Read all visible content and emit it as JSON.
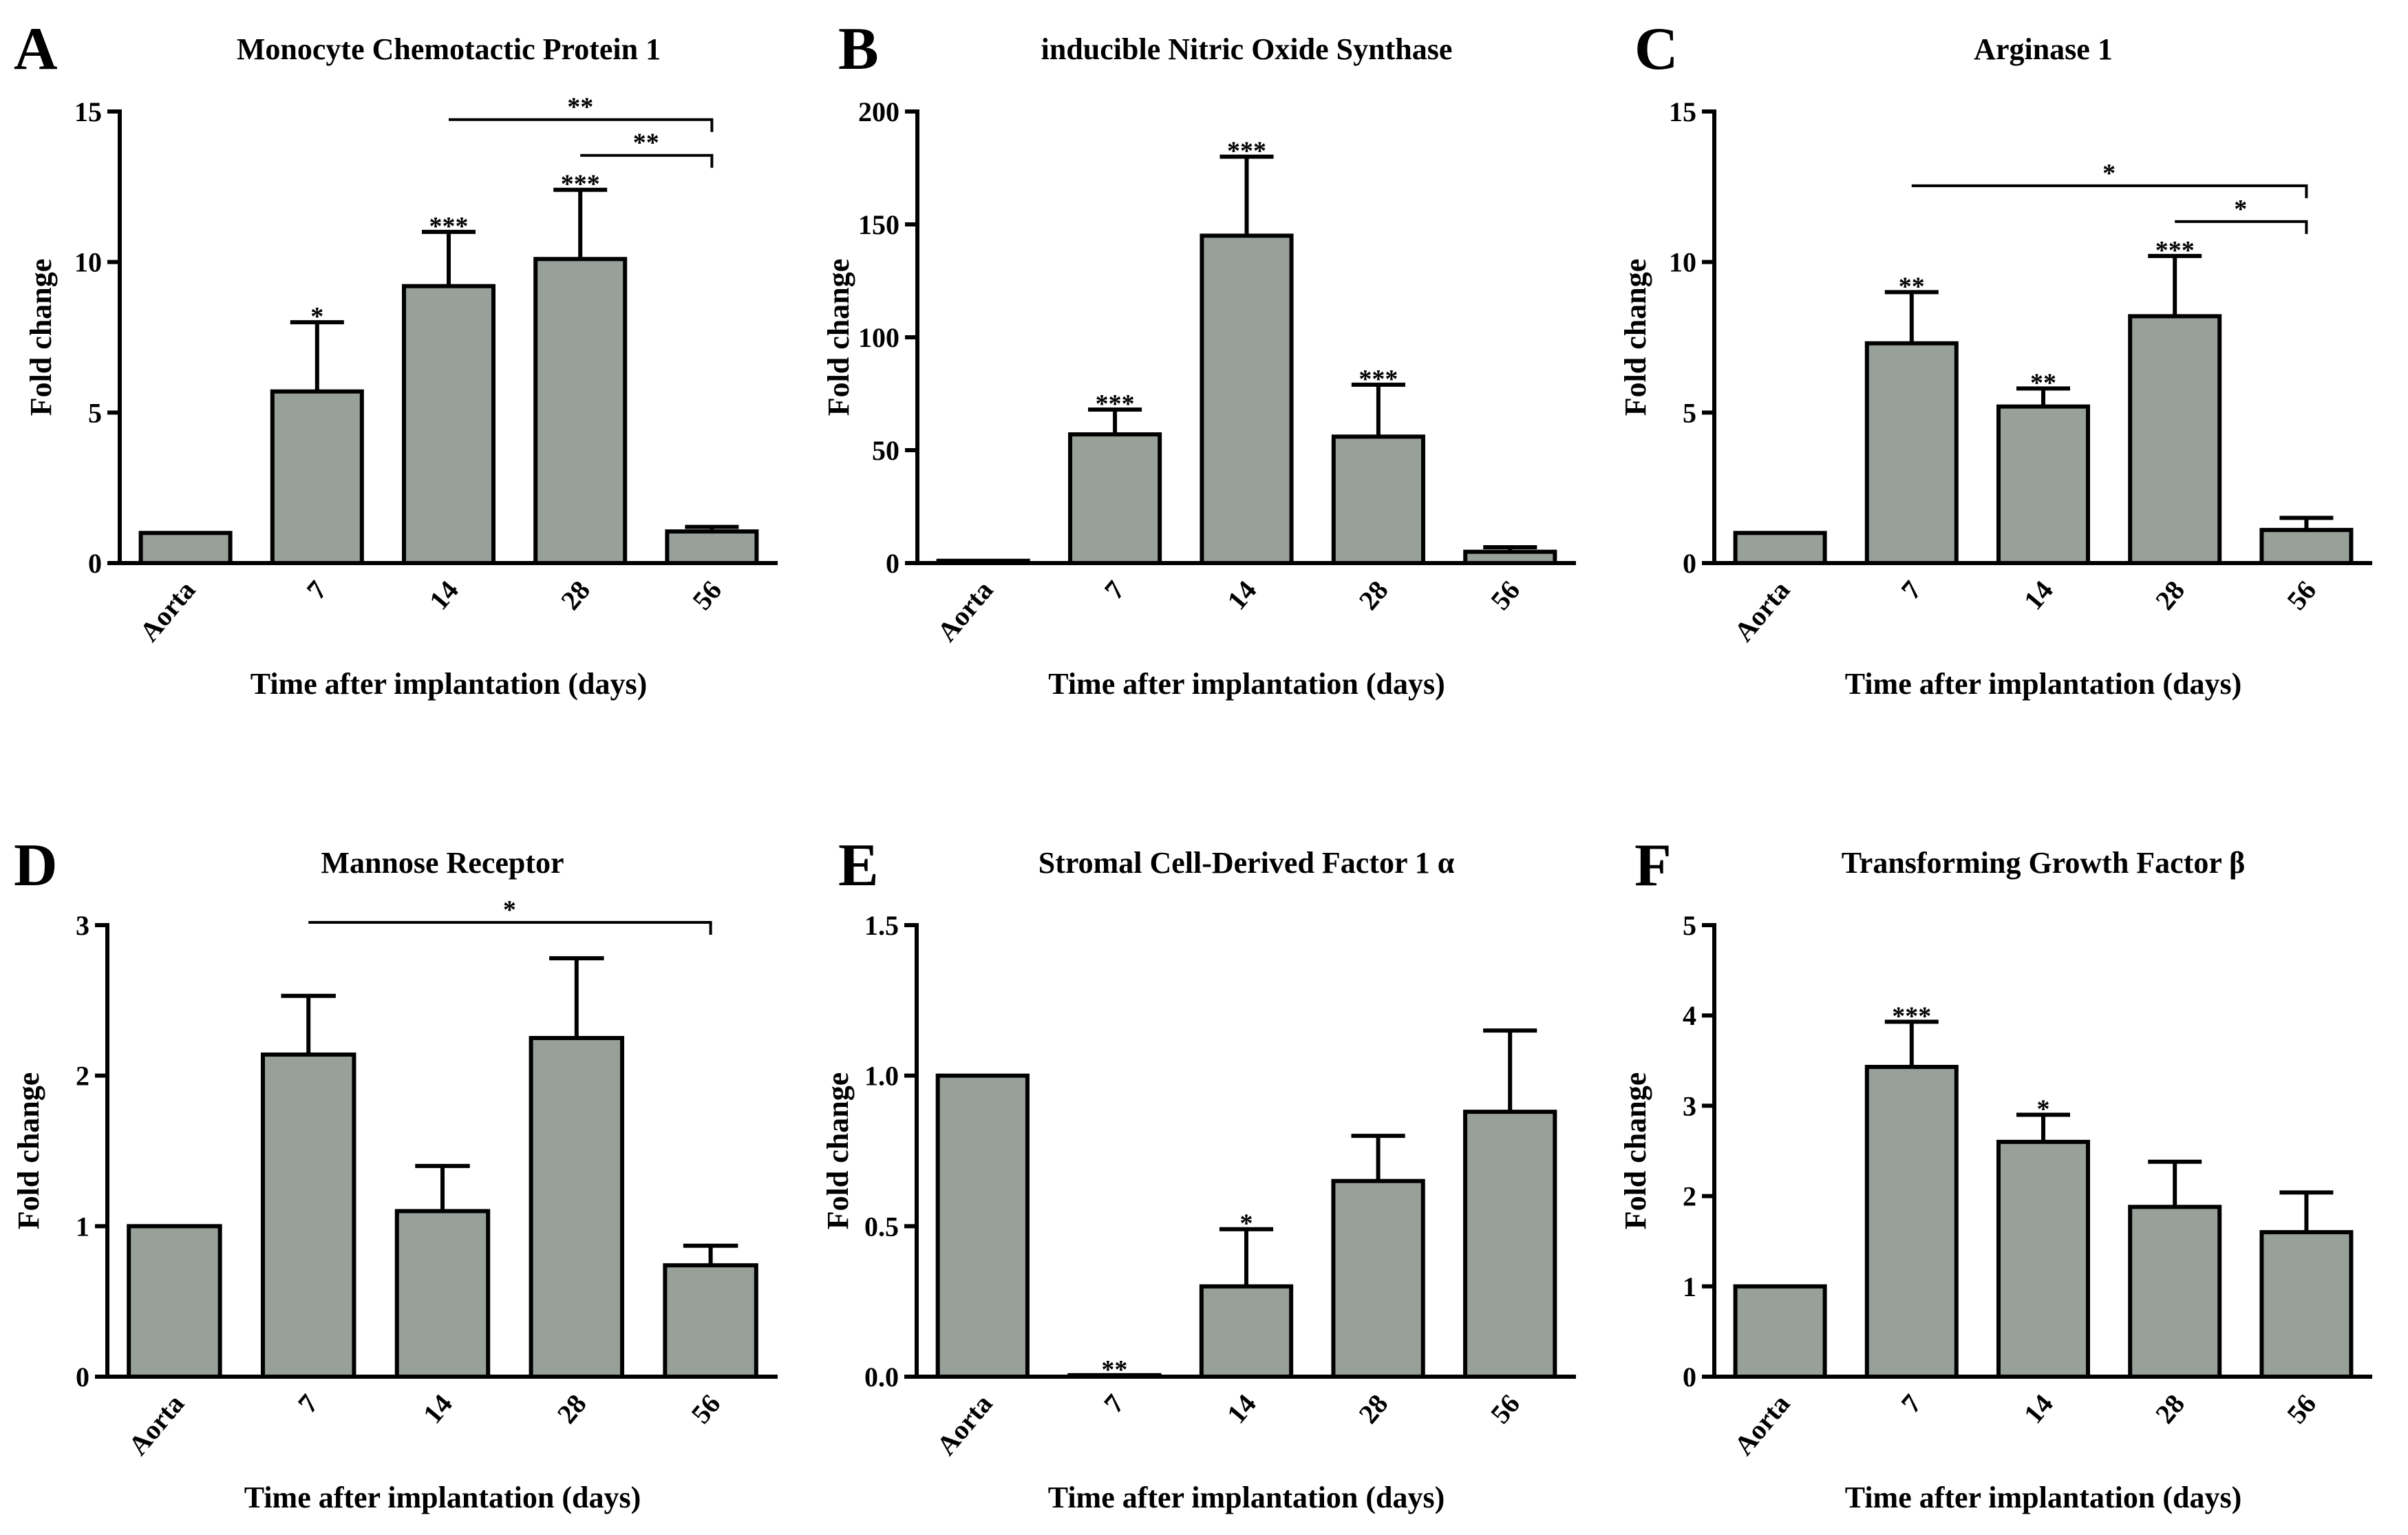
{
  "chart_data": [
    {
      "type": "bar",
      "panel": "A",
      "title": "Monocyte Chemotactic Protein 1",
      "xlabel": "Time after implantation (days)",
      "ylabel": "Fold change",
      "ylim": [
        0,
        15
      ],
      "yticks": [
        "0",
        "5",
        "10",
        "15"
      ],
      "categories": [
        "Aorta",
        "7",
        "14",
        "28",
        "56"
      ],
      "values": [
        1.0,
        5.7,
        9.2,
        10.1,
        1.05
      ],
      "errors": [
        0,
        2.3,
        1.8,
        2.3,
        0.15
      ],
      "significance": [
        "",
        "*",
        "***",
        "***",
        ""
      ],
      "brackets": [
        {
          "from": 2,
          "to": 4,
          "label": "**"
        },
        {
          "from": 3,
          "to": 4,
          "label": "**"
        }
      ]
    },
    {
      "type": "bar",
      "panel": "B",
      "title": "inducible Nitric Oxide Synthase",
      "xlabel": "Time after implantation (days)",
      "ylabel": "Fold change",
      "ylim": [
        0,
        200
      ],
      "yticks": [
        "0",
        "50",
        "100",
        "150",
        "200"
      ],
      "categories": [
        "Aorta",
        "7",
        "14",
        "28",
        "56"
      ],
      "values": [
        1.0,
        57,
        145,
        56,
        5
      ],
      "errors": [
        0,
        11,
        35,
        23,
        2
      ],
      "significance": [
        "",
        "***",
        "***",
        "***",
        ""
      ],
      "brackets": []
    },
    {
      "type": "bar",
      "panel": "C",
      "title": "Arginase 1",
      "xlabel": "Time after implantation (days)",
      "ylabel": "Fold change",
      "ylim": [
        0,
        15
      ],
      "yticks": [
        "0",
        "5",
        "10",
        "15"
      ],
      "categories": [
        "Aorta",
        "7",
        "14",
        "28",
        "56"
      ],
      "values": [
        1.0,
        7.3,
        5.2,
        8.2,
        1.1
      ],
      "errors": [
        0,
        1.7,
        0.6,
        2.0,
        0.4
      ],
      "significance": [
        "",
        "**",
        "**",
        "***",
        ""
      ],
      "brackets": [
        {
          "from": 1,
          "to": 4,
          "label": "*"
        },
        {
          "from": 3,
          "to": 4,
          "label": "*"
        }
      ]
    },
    {
      "type": "bar",
      "panel": "D",
      "title": "Mannose Receptor",
      "xlabel": "Time after implantation (days)",
      "ylabel": "Fold change",
      "ylim": [
        0,
        3
      ],
      "yticks": [
        "0",
        "1",
        "2",
        "3"
      ],
      "categories": [
        "Aorta",
        "7",
        "14",
        "28",
        "56"
      ],
      "values": [
        1.0,
        2.14,
        1.1,
        2.25,
        0.74
      ],
      "errors": [
        0,
        0.39,
        0.3,
        0.53,
        0.13
      ],
      "significance": [
        "",
        "",
        "",
        "",
        ""
      ],
      "brackets": [
        {
          "from": 1,
          "to": 4,
          "label": "*"
        }
      ]
    },
    {
      "type": "bar",
      "panel": "E",
      "title": "Stromal Cell-Derived Factor 1 α",
      "xlabel": "Time after implantation (days)",
      "ylabel": "Fold change",
      "ylim": [
        0,
        1.5
      ],
      "yticks": [
        "0.0",
        "0.5",
        "1.0",
        "1.5"
      ],
      "categories": [
        "Aorta",
        "7",
        "14",
        "28",
        "56"
      ],
      "values": [
        1.0,
        0.005,
        0.3,
        0.65,
        0.88
      ],
      "errors": [
        0,
        0,
        0.19,
        0.15,
        0.27
      ],
      "significance": [
        "",
        "**",
        "*",
        "",
        ""
      ],
      "brackets": []
    },
    {
      "type": "bar",
      "panel": "F",
      "title": "Transforming Growth Factor β",
      "xlabel": "Time after implantation (days)",
      "ylabel": "Fold change",
      "ylim": [
        0,
        5
      ],
      "yticks": [
        "0",
        "1",
        "2",
        "3",
        "4",
        "5"
      ],
      "categories": [
        "Aorta",
        "7",
        "14",
        "28",
        "56"
      ],
      "values": [
        1.0,
        3.43,
        2.6,
        1.88,
        1.6
      ],
      "errors": [
        0,
        0.5,
        0.3,
        0.5,
        0.44
      ],
      "significance": [
        "",
        "***",
        "*",
        "",
        ""
      ],
      "brackets": []
    }
  ],
  "colors": {
    "bar_fill": "#98a09a",
    "stroke": "#000000"
  }
}
